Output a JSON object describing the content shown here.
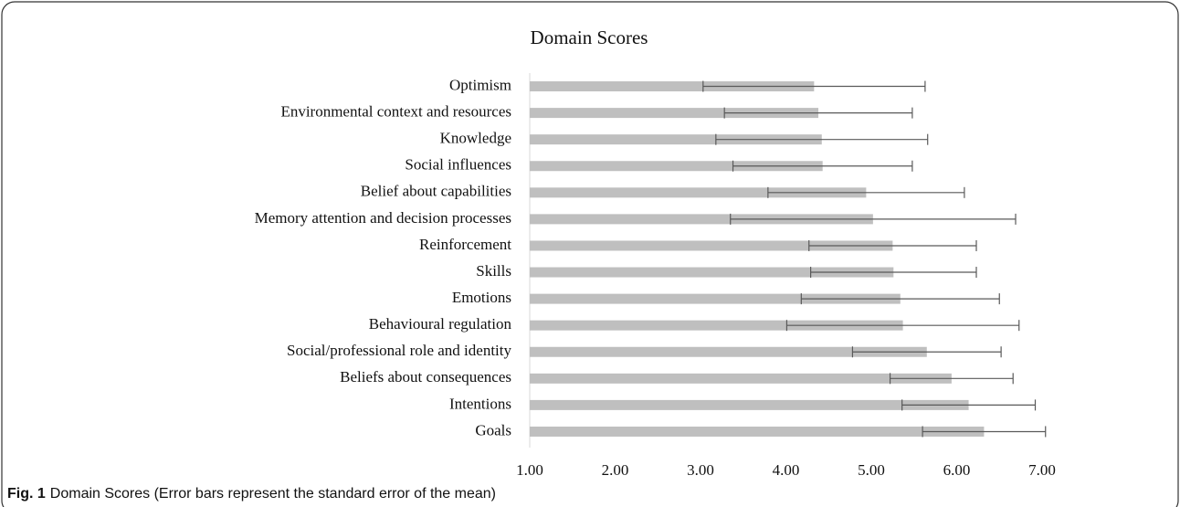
{
  "chart_data": {
    "type": "bar",
    "orientation": "horizontal",
    "title": "Domain Scores",
    "categories": [
      "Optimism",
      "Environmental context and resources",
      "Knowledge",
      "Social influences",
      "Belief about capabilities",
      "Memory attention and decision processes",
      "Reinforcement",
      "Skills",
      "Emotions",
      "Behavioural regulation",
      "Social/professional role and identity",
      "Beliefs about consequences",
      "Intentions",
      "Goals"
    ],
    "values": [
      4.33,
      4.38,
      4.42,
      4.43,
      4.94,
      5.02,
      5.25,
      5.26,
      5.34,
      5.37,
      5.65,
      5.94,
      6.14,
      6.32
    ],
    "errors": [
      1.3,
      1.1,
      1.24,
      1.05,
      1.15,
      1.67,
      0.98,
      0.97,
      1.16,
      1.36,
      0.87,
      0.72,
      0.78,
      0.72
    ],
    "color": "#bfbfbf",
    "error_color": "#595959",
    "xlim": [
      1,
      7
    ],
    "xticks": [
      {
        "value": 1,
        "label": "1.00"
      },
      {
        "value": 2,
        "label": "2.00"
      },
      {
        "value": 3,
        "label": "3.00"
      },
      {
        "value": 4,
        "label": "4.00"
      },
      {
        "value": 5,
        "label": "5.00"
      },
      {
        "value": 6,
        "label": "6.00"
      },
      {
        "value": 7,
        "label": "7.00"
      }
    ],
    "grid": false
  },
  "caption": {
    "label": "Fig. 1",
    "text": "Domain Scores (Error bars represent the standard error of the mean)"
  }
}
